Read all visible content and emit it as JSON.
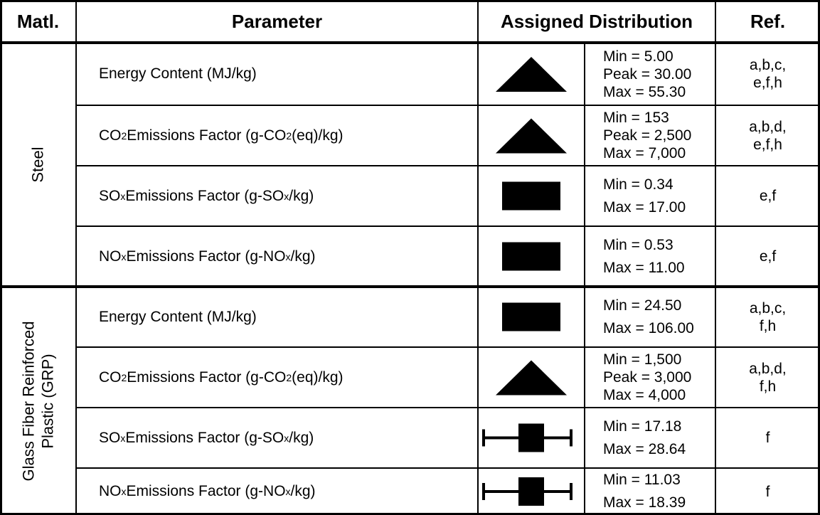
{
  "header": {
    "columns": [
      "Matl.",
      "Parameter",
      "Assigned Distribution",
      "Ref."
    ]
  },
  "groups": [
    {
      "material": [
        "Steel"
      ],
      "rows": [
        {
          "parameter": [
            {
              "text": "Energy Content (MJ/kg)"
            }
          ],
          "shape": "triangle",
          "values": [
            "Min = 5.00",
            "Peak = 30.00",
            "Max = 55.30"
          ],
          "ref": [
            "a,b,c,",
            "e,f,h"
          ]
        },
        {
          "parameter": [
            {
              "text": "CO"
            },
            {
              "text": "2",
              "sub": true
            },
            {
              "text": " Emissions Factor (g-CO"
            },
            {
              "text": "2",
              "sub": true
            },
            {
              "text": " (eq)/kg)"
            }
          ],
          "shape": "triangle",
          "values": [
            "Min = 153",
            "Peak = 2,500",
            "Max = 7,000"
          ],
          "ref": [
            "a,b,d,",
            "e,f,h"
          ]
        },
        {
          "parameter": [
            {
              "text": "SO"
            },
            {
              "text": "x",
              "sub": true
            },
            {
              "text": " Emissions Factor (g-SO"
            },
            {
              "text": "x",
              "sub": true
            },
            {
              "text": "/kg)"
            }
          ],
          "shape": "rectangle",
          "values": [
            "Min = 0.34",
            "Max = 17.00"
          ],
          "ref": [
            "e,f"
          ]
        },
        {
          "parameter": [
            {
              "text": "NO"
            },
            {
              "text": "x",
              "sub": true
            },
            {
              "text": " Emissions Factor (g-NO"
            },
            {
              "text": "x",
              "sub": true
            },
            {
              "text": "/kg)"
            }
          ],
          "shape": "rectangle",
          "values": [
            "Min = 0.53",
            "Max = 11.00"
          ],
          "ref": [
            "e,f"
          ]
        }
      ]
    },
    {
      "material": [
        "Glass Fiber Reinforced",
        "Plastic  (GRP)"
      ],
      "rows": [
        {
          "parameter": [
            {
              "text": "Energy Content (MJ/kg)"
            }
          ],
          "shape": "rectangle",
          "values": [
            "Min = 24.50",
            "Max = 106.00"
          ],
          "ref": [
            "a,b,c,",
            "f,h"
          ]
        },
        {
          "parameter": [
            {
              "text": "CO"
            },
            {
              "text": "2",
              "sub": true
            },
            {
              "text": " Emissions Factor (g-CO"
            },
            {
              "text": "2",
              "sub": true
            },
            {
              "text": " (eq)/kg)"
            }
          ],
          "shape": "triangle",
          "values": [
            "Min = 1,500",
            "Peak = 3,000",
            "Max = 4,000"
          ],
          "ref": [
            "a,b,d,",
            "f,h"
          ]
        },
        {
          "parameter": [
            {
              "text": "SO"
            },
            {
              "text": "x",
              "sub": true
            },
            {
              "text": " Emissions Factor (g-SO"
            },
            {
              "text": "x",
              "sub": true
            },
            {
              "text": "/kg)"
            }
          ],
          "shape": "box-whisker",
          "values": [
            "Min = 17.18",
            "Max = 28.64"
          ],
          "ref": [
            "f"
          ]
        },
        {
          "parameter": [
            {
              "text": "NO"
            },
            {
              "text": "x",
              "sub": true
            },
            {
              "text": " Emissions Factor (g-NO"
            },
            {
              "text": "x",
              "sub": true
            },
            {
              "text": "/kg)"
            }
          ],
          "shape": "box-whisker",
          "values": [
            "Min = 11.03",
            "Max = 18.39"
          ],
          "ref": [
            "f"
          ]
        }
      ]
    }
  ]
}
